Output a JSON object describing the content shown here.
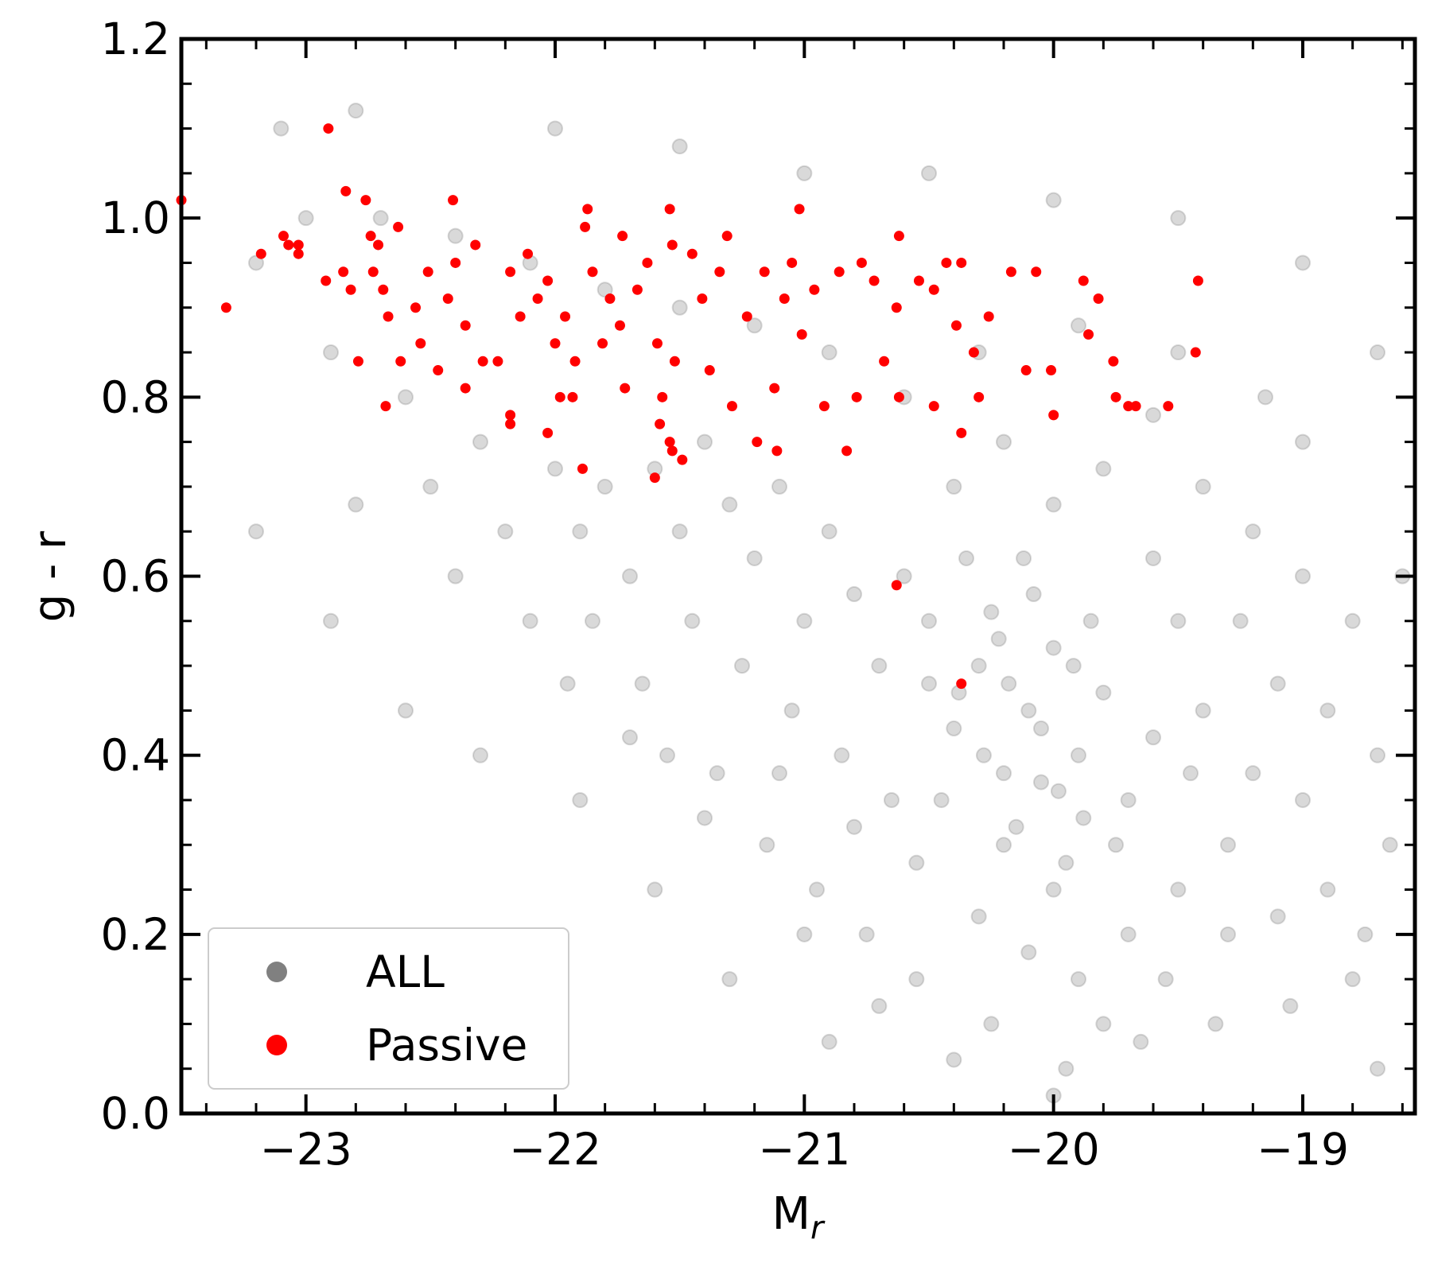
{
  "chart_data": {
    "type": "scatter",
    "x_label": {
      "main": "M",
      "sub": "r"
    },
    "y_label": "g - r",
    "xlim": [
      -23.5,
      -18.55
    ],
    "ylim": [
      0,
      1.2
    ],
    "xticks": [
      {
        "value": -23,
        "label": "−23"
      },
      {
        "value": -22,
        "label": "−22"
      },
      {
        "value": -21,
        "label": "−21"
      },
      {
        "value": -20,
        "label": "−20"
      },
      {
        "value": -19,
        "label": "−19"
      }
    ],
    "yticks": [
      {
        "value": 0,
        "label": "0.0"
      },
      0.2,
      0.4,
      0.6,
      0.8,
      {
        "value": 1,
        "label": "1.0"
      },
      1.2
    ],
    "xminor": 0.2,
    "yminor": 0.05,
    "legend": "lower left",
    "series": [
      {
        "name": "ALL",
        "color": "#808080",
        "alpha": 0.3,
        "x": [
          -20.1,
          -20.3,
          -19.9,
          -20.2,
          -20.0,
          -20.4,
          -19.8,
          -20.5,
          -19.7,
          -20.6,
          -20.15,
          -19.95,
          -20.35,
          -20.7,
          -19.6,
          -20.25,
          -20.05,
          -19.85,
          -20.45,
          -20.8,
          -20.9,
          -21.0,
          -21.1,
          -21.2,
          -21.3,
          -21.4,
          -21.5,
          -21.6,
          -21.7,
          -21.8,
          -21.9,
          -22.0,
          -21.05,
          -21.25,
          -21.45,
          -21.65,
          -21.85,
          -20.85,
          -20.65,
          -20.55,
          -20.3,
          -20.1,
          -19.9,
          -19.7,
          -19.5,
          -19.3,
          -19.2,
          -19.4,
          -19.5,
          -19.6,
          -19.25,
          -19.1,
          -19.0,
          -18.9,
          -18.8,
          -19.05,
          -19.35,
          -19.65,
          -19.95,
          -20.25,
          -20.55,
          -20.75,
          -20.95,
          -21.15,
          -21.35,
          -21.55,
          -20.4,
          -20.2,
          -20.0,
          -19.8,
          -19.6,
          -19.4,
          -19.2,
          -19.0,
          -18.8,
          -18.7,
          -18.65,
          -18.75,
          -19.15,
          -19.5,
          -19.9,
          -20.3,
          -20.6,
          -20.9,
          -21.2,
          -21.5,
          -21.8,
          -22.1,
          -22.4,
          -22.7,
          -23.0,
          -23.2,
          -22.9,
          -22.6,
          -22.3,
          -22.2,
          -22.5,
          -22.8,
          -22.4,
          -22.1,
          -21.95,
          -21.7,
          -21.4,
          -21.0,
          -20.7,
          -20.4,
          -20.0,
          -19.8,
          -20.2,
          -20.0,
          -19.75,
          -20.5,
          -20.8,
          -21.1,
          -19.3,
          -19.1,
          -18.9,
          -18.6,
          -23.1,
          -22.8,
          -22.0,
          -21.5,
          -21.0,
          -20.5,
          -20.0,
          -19.5,
          -19.0,
          -18.7,
          -22.9,
          -22.6,
          -22.3,
          -21.9,
          -23.2,
          -21.6,
          -21.3,
          -20.9,
          -19.0,
          -18.7,
          -19.45,
          -19.55,
          -20.12,
          -20.28,
          -19.92,
          -20.18,
          -20.05,
          -19.98,
          -20.38,
          -20.22,
          -19.88,
          -20.08
        ],
        "y": [
          0.45,
          0.5,
          0.4,
          0.38,
          0.52,
          0.43,
          0.47,
          0.55,
          0.35,
          0.6,
          0.32,
          0.28,
          0.62,
          0.5,
          0.42,
          0.56,
          0.37,
          0.55,
          0.35,
          0.58,
          0.65,
          0.55,
          0.7,
          0.62,
          0.68,
          0.75,
          0.65,
          0.72,
          0.6,
          0.7,
          0.65,
          0.72,
          0.45,
          0.5,
          0.55,
          0.48,
          0.55,
          0.4,
          0.35,
          0.28,
          0.22,
          0.18,
          0.15,
          0.2,
          0.25,
          0.3,
          0.38,
          0.45,
          0.55,
          0.62,
          0.55,
          0.48,
          0.35,
          0.25,
          0.15,
          0.12,
          0.1,
          0.08,
          0.05,
          0.1,
          0.15,
          0.2,
          0.25,
          0.3,
          0.38,
          0.4,
          0.7,
          0.75,
          0.68,
          0.72,
          0.78,
          0.7,
          0.65,
          0.6,
          0.55,
          0.4,
          0.3,
          0.2,
          0.8,
          0.85,
          0.88,
          0.85,
          0.8,
          0.85,
          0.88,
          0.9,
          0.92,
          0.95,
          0.98,
          1.0,
          1.0,
          0.95,
          0.85,
          0.8,
          0.75,
          0.65,
          0.7,
          0.68,
          0.6,
          0.55,
          0.48,
          0.42,
          0.33,
          0.2,
          0.12,
          0.06,
          0.02,
          0.1,
          0.3,
          0.25,
          0.3,
          0.48,
          0.32,
          0.38,
          0.2,
          0.22,
          0.45,
          0.6,
          1.1,
          1.12,
          1.1,
          1.08,
          1.05,
          1.05,
          1.02,
          1.0,
          0.95,
          0.85,
          0.55,
          0.45,
          0.4,
          0.35,
          0.65,
          0.25,
          0.15,
          0.08,
          0.75,
          0.05,
          0.38,
          0.15,
          0.62,
          0.4,
          0.5,
          0.48,
          0.43,
          0.36,
          0.47,
          0.53,
          0.33,
          0.58
        ]
      },
      {
        "name": "Passive",
        "color": "#ff0000",
        "alpha": 1,
        "x": [
          -23.5,
          -23.32,
          -23.18,
          -23.09,
          -23.07,
          -23.03,
          -23.03,
          -22.91,
          -22.92,
          -22.84,
          -22.82,
          -22.85,
          -22.79,
          -22.76,
          -22.74,
          -22.68,
          -22.63,
          -22.73,
          -22.71,
          -22.69,
          -22.67,
          -22.62,
          -22.56,
          -22.54,
          -22.51,
          -22.47,
          -22.41,
          -22.43,
          -22.4,
          -22.36,
          -22.32,
          -22.29,
          -22.36,
          -22.23,
          -22.18,
          -22.18,
          -22.18,
          -22.14,
          -22.11,
          -22.07,
          -22.03,
          -22.03,
          -22.0,
          -21.96,
          -21.92,
          -21.98,
          -21.93,
          -21.89,
          -21.87,
          -21.88,
          -21.85,
          -21.81,
          -21.78,
          -21.74,
          -21.73,
          -21.72,
          -21.67,
          -21.63,
          -21.59,
          -21.6,
          -21.54,
          -21.53,
          -21.57,
          -21.58,
          -21.54,
          -21.53,
          -21.49,
          -21.52,
          -21.45,
          -21.41,
          -21.38,
          -21.34,
          -21.31,
          -21.29,
          -21.19,
          -21.23,
          -21.16,
          -21.12,
          -21.08,
          -21.11,
          -21.02,
          -21.05,
          -21.01,
          -20.96,
          -20.92,
          -20.86,
          -20.83,
          -20.79,
          -20.77,
          -20.72,
          -20.68,
          -20.63,
          -20.62,
          -20.62,
          -20.63,
          -20.54,
          -20.48,
          -20.43,
          -20.48,
          -20.37,
          -20.37,
          -20.37,
          -20.39,
          -20.32,
          -20.3,
          -20.26,
          -20.17,
          -20.11,
          -20.07,
          -20.01,
          -20.0,
          -19.88,
          -19.86,
          -19.82,
          -19.76,
          -19.75,
          -19.7,
          -19.67,
          -19.54,
          -19.42,
          -19.43
        ],
        "y": [
          1.02,
          0.9,
          0.96,
          0.98,
          0.97,
          0.97,
          0.96,
          1.1,
          0.93,
          1.03,
          0.92,
          0.94,
          0.84,
          1.02,
          0.98,
          0.79,
          0.99,
          0.94,
          0.97,
          0.92,
          0.89,
          0.84,
          0.9,
          0.86,
          0.94,
          0.83,
          1.02,
          0.91,
          0.95,
          0.88,
          0.97,
          0.84,
          0.81,
          0.84,
          0.78,
          0.77,
          0.94,
          0.89,
          0.96,
          0.91,
          0.76,
          0.93,
          0.86,
          0.89,
          0.84,
          0.8,
          0.8,
          0.72,
          1.01,
          0.99,
          0.94,
          0.86,
          0.91,
          0.88,
          0.98,
          0.81,
          0.92,
          0.95,
          0.86,
          0.71,
          1.01,
          0.97,
          0.8,
          0.77,
          0.75,
          0.74,
          0.73,
          0.84,
          0.96,
          0.91,
          0.83,
          0.94,
          0.98,
          0.79,
          0.75,
          0.89,
          0.94,
          0.81,
          0.91,
          0.74,
          1.01,
          0.95,
          0.87,
          0.92,
          0.79,
          0.94,
          0.74,
          0.8,
          0.95,
          0.93,
          0.84,
          0.9,
          0.98,
          0.8,
          0.59,
          0.93,
          0.92,
          0.95,
          0.79,
          0.95,
          0.76,
          0.48,
          0.88,
          0.85,
          0.8,
          0.89,
          0.94,
          0.83,
          0.94,
          0.83,
          0.78,
          0.93,
          0.87,
          0.91,
          0.84,
          0.8,
          0.79,
          0.79,
          0.79,
          0.93,
          0.85
        ]
      }
    ]
  }
}
